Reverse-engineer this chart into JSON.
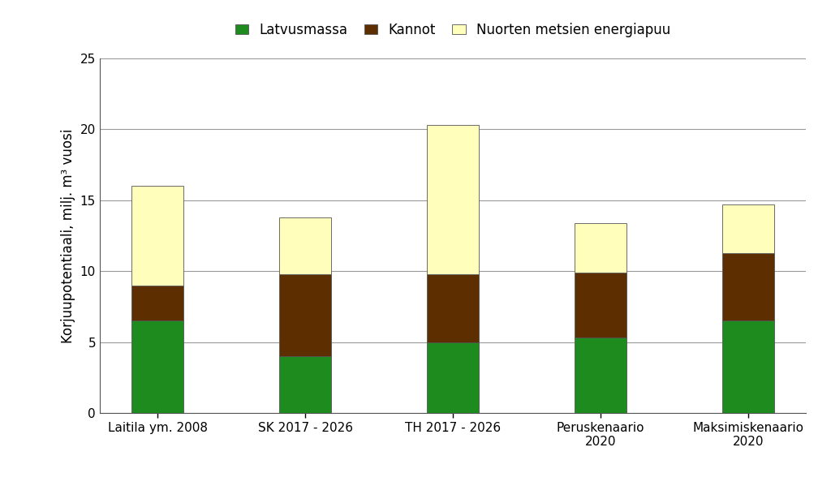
{
  "categories": [
    "Laitila ym. 2008",
    "SK 2017 - 2026",
    "TH 2017 - 2026",
    "Peruskenaario\n2020",
    "Maksimiskenaario\n2020"
  ],
  "latvusmassa": [
    6.5,
    4.0,
    5.0,
    5.3,
    6.5
  ],
  "kannot": [
    2.5,
    5.8,
    4.8,
    4.6,
    4.8
  ],
  "nuorten": [
    7.0,
    4.0,
    10.5,
    3.5,
    3.4
  ],
  "color_latvusmassa": "#1E8B1E",
  "color_kannot": "#5C2E00",
  "color_nuorten": "#FFFFBB",
  "ylabel": "Korjuupotentiaali, milj. m³ vuosi",
  "legend_labels": [
    "Latvusmassa",
    "Kannot",
    "Nuorten metsien energiapuu"
  ],
  "ylim": [
    0,
    25
  ],
  "yticks": [
    0,
    5,
    10,
    15,
    20,
    25
  ],
  "background_color": "#ffffff",
  "bar_width": 0.35,
  "bar_edge_color": "#555555",
  "bar_edge_width": 0.6,
  "grid_color": "#999999",
  "axis_fontsize": 12,
  "tick_fontsize": 11,
  "legend_fontsize": 12
}
